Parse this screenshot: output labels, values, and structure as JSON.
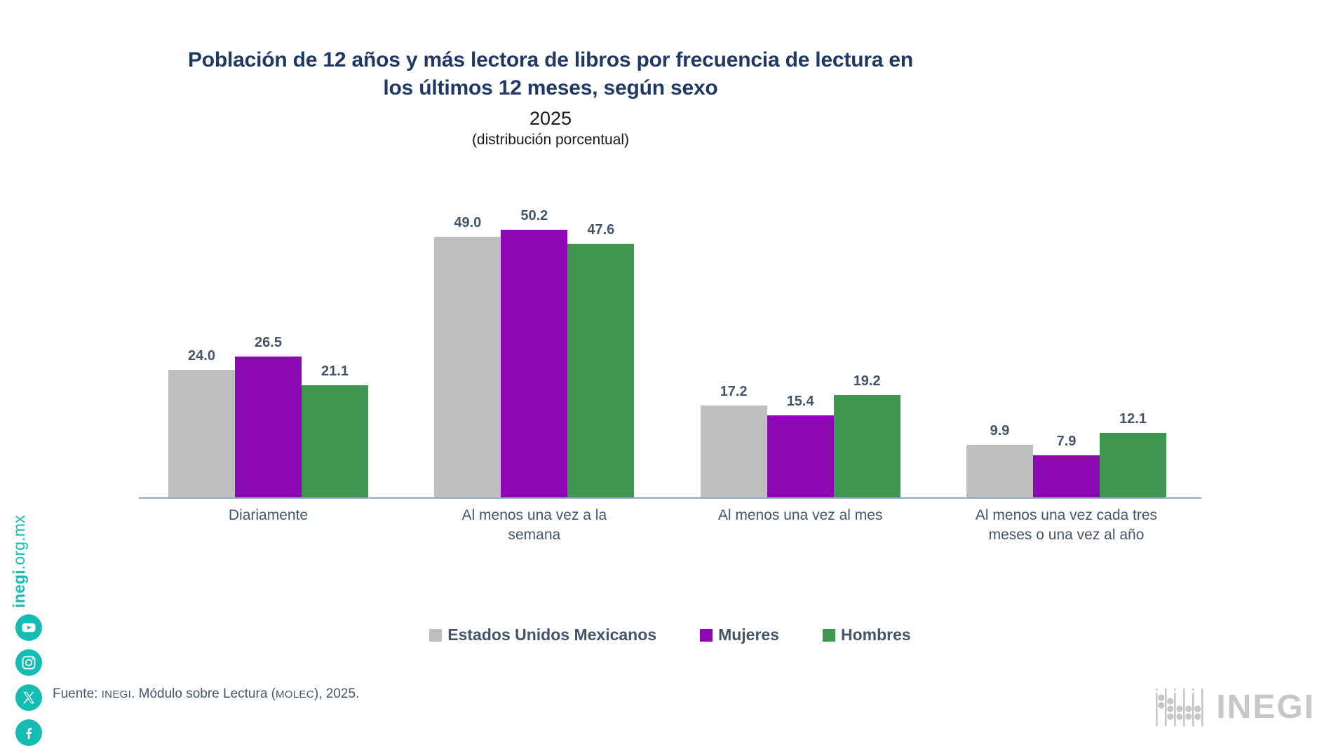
{
  "chart_data": {
    "type": "bar",
    "title": "Población de 12 años y más lectora de libros por frecuencia de lectura en\nlos últimos 12 meses, según sexo",
    "year": "2025",
    "subtitle": "(distribución porcentual)",
    "categories": [
      "Diariamente",
      "Al menos una vez a la\nsemana",
      "Al menos una vez al mes",
      "Al menos una vez cada tres\nmeses o una vez al año"
    ],
    "series": [
      {
        "name": "Estados Unidos Mexicanos",
        "color": "#BFBFBF",
        "values": [
          24.0,
          49.0,
          17.2,
          9.9
        ]
      },
      {
        "name": "Mujeres",
        "color": "#8C08B4",
        "values": [
          26.5,
          50.2,
          15.4,
          7.9
        ]
      },
      {
        "name": "Hombres",
        "color": "#3E9651",
        "values": [
          21.1,
          47.6,
          19.2,
          12.1
        ]
      }
    ],
    "ylim": [
      0,
      60
    ],
    "grid": false,
    "legend_position": "bottom",
    "value_label_color": "#44546A",
    "axis_line_color": "#91A8BE",
    "title_color": "#1F3864"
  },
  "sidebar": {
    "website_bold": "inegi",
    "website_rest": ".org.mx",
    "accent_color": "#14BCB2",
    "icons": [
      "youtube-icon",
      "instagram-icon",
      "x-icon",
      "facebook-icon"
    ]
  },
  "footer": {
    "prefix": "Fuente: ",
    "inegi": "INEGI",
    "mid": ". Módulo sobre Lectura (",
    "molec": "MOLEC",
    "suffix": "), 2025."
  },
  "logo": {
    "text": "INEGI",
    "color": "#C7C7C7"
  }
}
